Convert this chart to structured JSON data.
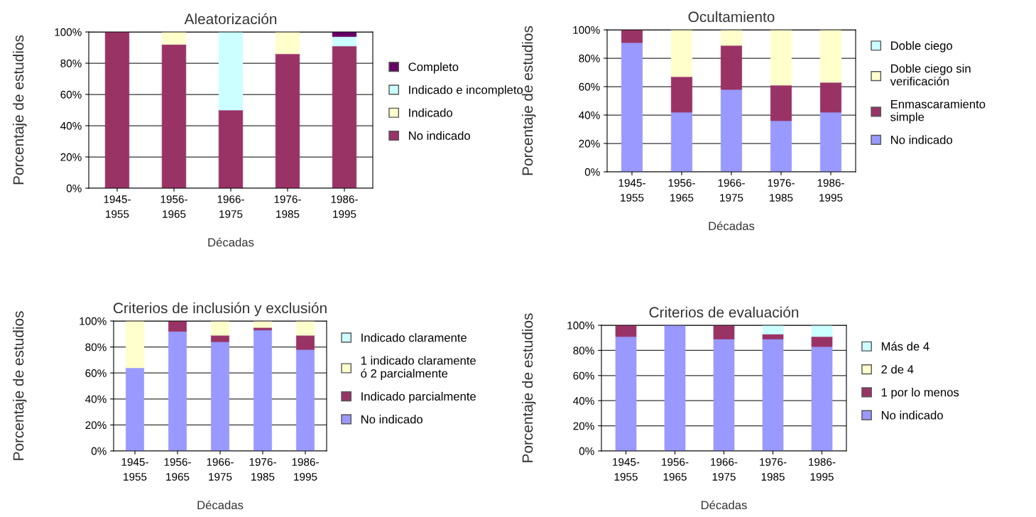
{
  "chart_data": [
    {
      "type": "bar",
      "stacked": true,
      "title": "Aleatorización",
      "xlabel": "Décadas",
      "ylabel": "Porcentaje de estudios",
      "categories": [
        "1945-\n1955",
        "1956-\n1965",
        "1966-\n1975",
        "1976-\n1985",
        "1986-\n1995"
      ],
      "ylim": [
        0,
        100
      ],
      "yticks": [
        {
          "value": 0,
          "label": "0%"
        },
        {
          "value": 20,
          "label": "20%"
        },
        {
          "value": 40,
          "label": "40%"
        },
        {
          "value": 60,
          "label": "60%"
        },
        {
          "value": 80,
          "label": "80%"
        },
        {
          "value": 100,
          "label": "100%"
        }
      ],
      "grid": "y",
      "legend": "right",
      "series": [
        {
          "name": "No indicado",
          "color": "#993366",
          "values": [
            100,
            92,
            50,
            86,
            91
          ]
        },
        {
          "name": "Indicado",
          "color": "#ffffcc",
          "values": [
            null,
            8,
            null,
            14,
            null
          ]
        },
        {
          "name": "Indicado e incompleto",
          "color": "#ccffff",
          "values": [
            null,
            null,
            50,
            null,
            6
          ]
        },
        {
          "name": "Completo",
          "color": "#660066",
          "values": [
            null,
            null,
            null,
            null,
            3
          ]
        }
      ]
    },
    {
      "type": "bar",
      "stacked": true,
      "title": "Ocultamiento",
      "xlabel": "Décadas",
      "ylabel": "Porcentaje de estudios",
      "categories": [
        "1945-\n1955",
        "1956-\n1965",
        "1966-\n1975",
        "1976-\n1985",
        "1986-\n1995"
      ],
      "ylim": [
        0,
        100
      ],
      "yticks": [
        {
          "value": 0,
          "label": "0%"
        },
        {
          "value": 20,
          "label": "20%"
        },
        {
          "value": 40,
          "label": "40%"
        },
        {
          "value": 60,
          "label": "60%"
        },
        {
          "value": 80,
          "label": "80%"
        },
        {
          "value": 100,
          "label": "100%"
        }
      ],
      "grid": "y",
      "legend": "right",
      "series": [
        {
          "name": "No indicado",
          "color": "#9999ff",
          "values": [
            91,
            42,
            58,
            36,
            42
          ]
        },
        {
          "name": "Enmascaramiento\nsimple",
          "color": "#993366",
          "values": [
            9,
            25,
            31,
            25,
            21
          ]
        },
        {
          "name": "Doble ciego sin\nverificación",
          "color": "#ffffcc",
          "values": [
            null,
            33,
            11,
            39,
            37
          ]
        },
        {
          "name": "Doble ciego",
          "color": "#ccffff",
          "values": [
            null,
            null,
            null,
            null,
            null
          ]
        }
      ]
    },
    {
      "type": "bar",
      "stacked": true,
      "title": "Criterios de inclusión y exclusión",
      "xlabel": "Décadas",
      "ylabel": "Porcentaje de estudios",
      "categories": [
        "1945-\n1955",
        "1956-\n1965",
        "1966-\n1975",
        "1976-\n1985",
        "1986-\n1995"
      ],
      "ylim": [
        0,
        100
      ],
      "yticks": [
        {
          "value": 0,
          "label": "0%"
        },
        {
          "value": 20,
          "label": "20%"
        },
        {
          "value": 40,
          "label": "40%"
        },
        {
          "value": 60,
          "label": "60%"
        },
        {
          "value": 80,
          "label": "80%"
        },
        {
          "value": 100,
          "label": "100%"
        }
      ],
      "grid": "y",
      "legend": "right",
      "series": [
        {
          "name": "No indicado",
          "color": "#9999ff",
          "values": [
            64,
            92,
            84,
            93,
            78
          ]
        },
        {
          "name": "Indicado parcialmente",
          "color": "#993366",
          "values": [
            null,
            8,
            5,
            2,
            11
          ]
        },
        {
          "name": "1 indicado claramente\nó 2 parcialmente",
          "color": "#ffffcc",
          "values": [
            36,
            null,
            11,
            5,
            11
          ]
        },
        {
          "name": "Indicado claramente",
          "color": "#ccffff",
          "values": [
            null,
            null,
            null,
            null,
            null
          ]
        }
      ]
    },
    {
      "type": "bar",
      "stacked": true,
      "title": "Criterios de evaluación",
      "xlabel": "Décadas",
      "ylabel": "Porcentaje de estudios",
      "categories": [
        "1945-\n1955",
        "1956-\n1965",
        "1966-\n1975",
        "1976-\n1985",
        "1986-\n1995"
      ],
      "ylim": [
        0,
        100
      ],
      "yticks": [
        {
          "value": 0,
          "label": "0%"
        },
        {
          "value": 20,
          "label": "20%"
        },
        {
          "value": 40,
          "label": "40%"
        },
        {
          "value": 60,
          "label": "60%"
        },
        {
          "value": 80,
          "label": "80%"
        },
        {
          "value": 100,
          "label": "100%"
        }
      ],
      "grid": "y",
      "legend": "right",
      "series": [
        {
          "name": "No indicado",
          "color": "#9999ff",
          "values": [
            91,
            100,
            89,
            89,
            83
          ]
        },
        {
          "name": "1 por lo menos",
          "color": "#993366",
          "values": [
            9,
            null,
            11,
            4,
            8
          ]
        },
        {
          "name": "2 de 4",
          "color": "#ffffcc",
          "values": [
            null,
            null,
            null,
            null,
            null
          ]
        },
        {
          "name": "Más de 4",
          "color": "#ccffff",
          "values": [
            null,
            null,
            null,
            7,
            9
          ]
        }
      ]
    }
  ]
}
